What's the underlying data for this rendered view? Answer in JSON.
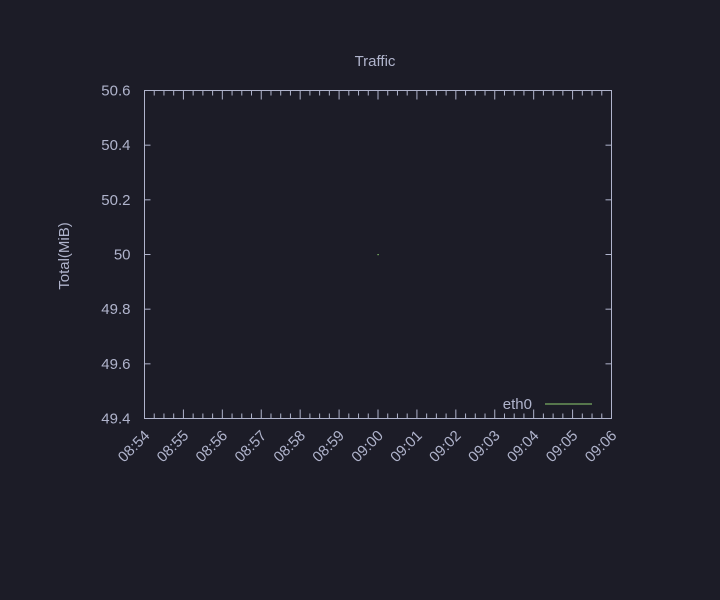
{
  "chart_data": {
    "type": "line",
    "title": "Traffic",
    "xlabel": "",
    "ylabel": "Total(MiB)",
    "x_ticks": [
      "08:54",
      "08:55",
      "08:56",
      "08:57",
      "08:58",
      "08:59",
      "09:00",
      "09:01",
      "09:02",
      "09:03",
      "09:04",
      "09:05",
      "09:06"
    ],
    "y_ticks": [
      "49.4",
      "49.6",
      "49.8",
      "50",
      "50.2",
      "50.4",
      "50.6"
    ],
    "ylim": [
      49.4,
      50.6
    ],
    "xlim": [
      "08:54",
      "09:06"
    ],
    "minor_x_ticks_per_major": 3,
    "grid": false,
    "legend_position": "bottom-right",
    "series": [
      {
        "name": "eth0",
        "color": "#8fd170",
        "x": [
          "09:00"
        ],
        "values": [
          50
        ]
      }
    ],
    "colors": {
      "background": "#1c1c27",
      "axis": "#b0b4cc",
      "text": "#b0b4cc"
    }
  }
}
